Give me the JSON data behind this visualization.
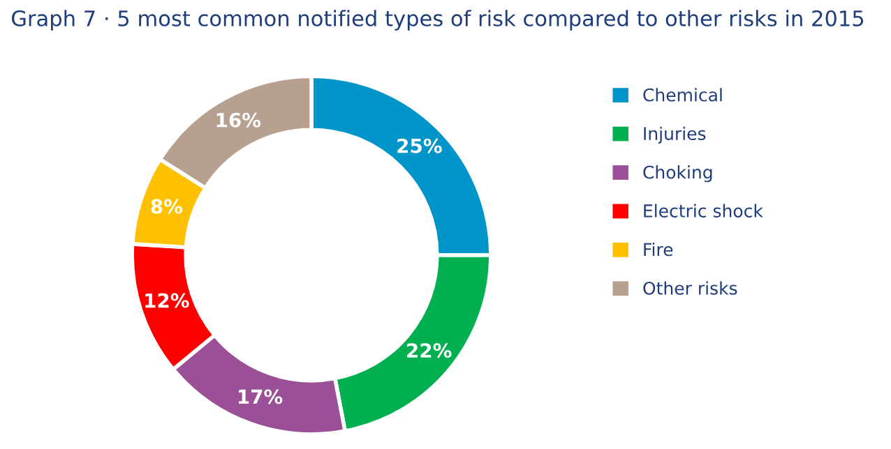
{
  "chart_data": {
    "type": "donut",
    "title": "Graph 7 · 5 most common notified types of risk compared to other risks in 2015",
    "categories": [
      "Chemical",
      "Injuries",
      "Choking",
      "Electric shock",
      "Fire",
      "Other risks"
    ],
    "values": [
      25,
      22,
      17,
      12,
      8,
      16
    ],
    "colors": [
      "#0095c8",
      "#00b050",
      "#9b4f96",
      "#ff0000",
      "#ffc000",
      "#b8a090"
    ],
    "value_labels": [
      "25%",
      "22%",
      "17%",
      "12%",
      "8%",
      "16%"
    ],
    "legend": "right"
  }
}
